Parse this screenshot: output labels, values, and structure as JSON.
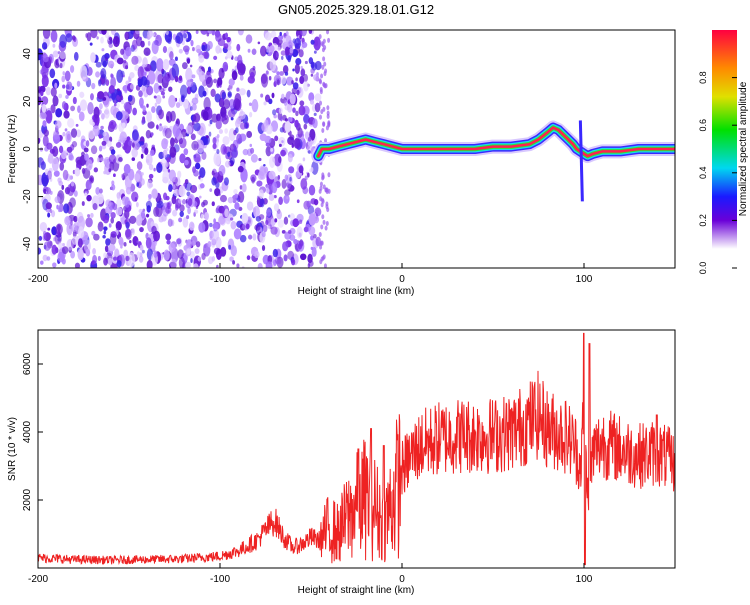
{
  "title": "GN05.2025.329.18.01.G12",
  "chart_data": [
    {
      "type": "heatmap",
      "xlabel": "Height of straight line (km)",
      "ylabel": "Frequency (Hz)",
      "xlim": [
        -200,
        150
      ],
      "ylim": [
        -50,
        50
      ],
      "x_ticks": [
        -200,
        -100,
        0,
        100
      ],
      "y_ticks": [
        -40,
        -20,
        0,
        20,
        40
      ],
      "colorbar_label": "Normalized spectral amplitude",
      "colorbar_range": [
        0.0,
        1.0
      ],
      "colorbar_ticks": [
        0.0,
        0.2,
        0.4,
        0.6,
        0.8
      ],
      "ridge": {
        "description": "Dominant Doppler frequency ridge",
        "x": [
          -46,
          -44,
          -40,
          -35,
          -30,
          -25,
          -20,
          -15,
          -10,
          -5,
          0,
          10,
          20,
          30,
          40,
          50,
          60,
          70,
          75,
          80,
          83,
          86,
          90,
          94,
          96,
          100,
          102,
          105,
          110,
          120,
          130,
          140,
          150
        ],
        "y": [
          -3,
          0,
          0,
          1,
          2,
          3,
          4,
          3,
          2,
          1,
          0,
          0,
          0,
          0,
          0,
          1,
          1,
          2,
          4,
          7,
          9,
          8,
          5,
          2,
          0,
          -2,
          -3,
          -2,
          -1,
          -1,
          0,
          0,
          0
        ]
      },
      "noise_region_x": [
        -200,
        -46
      ]
    },
    {
      "type": "line",
      "xlabel": "Height of straight line (km)",
      "ylabel": "SNR (10 * v/v)",
      "xlim": [
        -200,
        150
      ],
      "ylim": [
        0,
        7000
      ],
      "x_ticks": [
        -200,
        -100,
        0,
        100
      ],
      "y_ticks": [
        2000,
        4000,
        6000
      ],
      "series": [
        {
          "name": "SNR",
          "color": "#ee2222",
          "x": [
            -200,
            -180,
            -160,
            -140,
            -120,
            -100,
            -90,
            -80,
            -75,
            -72,
            -70,
            -68,
            -65,
            -60,
            -55,
            -50,
            -45,
            -40,
            -35,
            -30,
            -25,
            -20,
            -15,
            -10,
            -5,
            0,
            5,
            10,
            20,
            30,
            40,
            50,
            60,
            70,
            75,
            80,
            85,
            90,
            95,
            98,
            100,
            102,
            105,
            110,
            120,
            130,
            140,
            150
          ],
          "y": [
            300,
            250,
            230,
            250,
            270,
            350,
            500,
            800,
            1100,
            1300,
            1400,
            1200,
            900,
            600,
            700,
            900,
            800,
            1200,
            1000,
            1500,
            1800,
            2100,
            1800,
            1300,
            2000,
            2900,
            3300,
            3600,
            3800,
            3900,
            3900,
            3900,
            4000,
            4300,
            4500,
            4100,
            4000,
            3900,
            3600,
            3000,
            4500,
            2200,
            3400,
            3700,
            3500,
            3300,
            3400,
            3100
          ],
          "spikes": [
            {
              "x": -24,
              "y": 3500
            },
            {
              "x": -17,
              "y": 4100
            },
            {
              "x": -10,
              "y": 3600
            },
            {
              "x": 100,
              "y": 6900
            },
            {
              "x": 100.5,
              "y": 100
            },
            {
              "x": 103,
              "y": 6600
            },
            {
              "x": 140,
              "y": 4500
            }
          ]
        }
      ]
    }
  ]
}
